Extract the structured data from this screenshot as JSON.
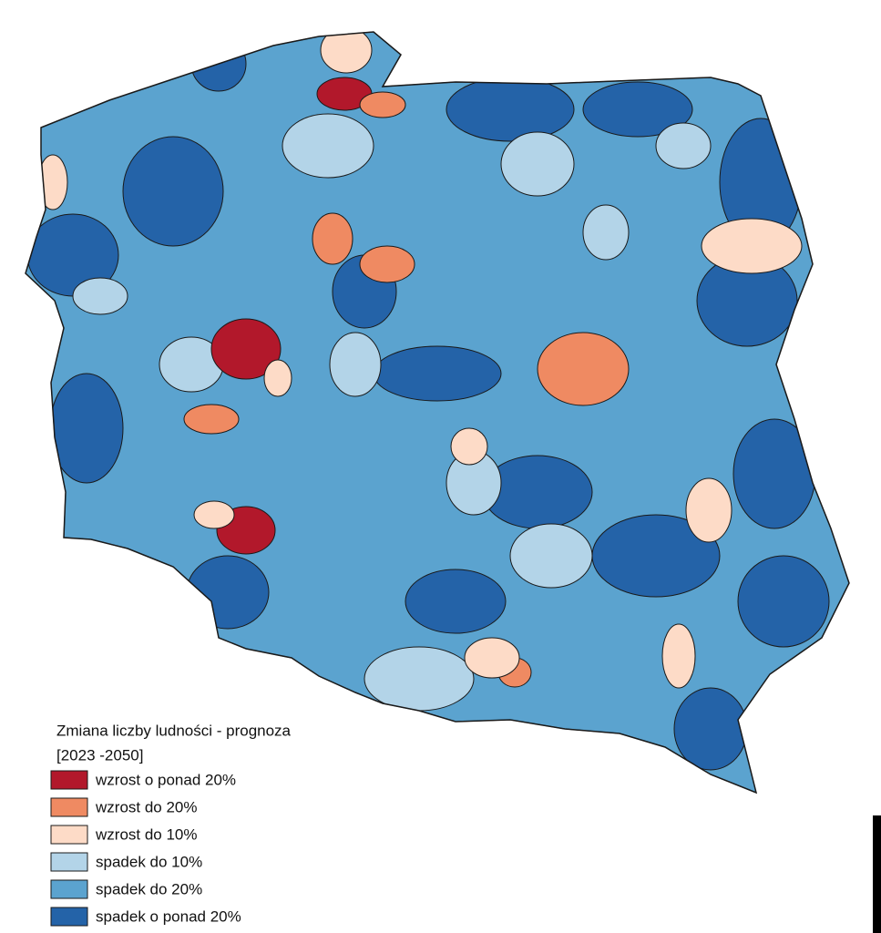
{
  "legend": {
    "title": "Zmiana liczby ludności - prognoza",
    "subtitle": "[2023 -2050]",
    "items": [
      {
        "label": "wzrost o ponad 20%",
        "color": "#b2182b"
      },
      {
        "label": "wzrost do 20%",
        "color": "#ef8a62"
      },
      {
        "label": "wzrost do 10%",
        "color": "#fddbc7"
      },
      {
        "label": "spadek do 10%",
        "color": "#b3d4e8"
      },
      {
        "label": "spadek do 20%",
        "color": "#5ba3cf"
      },
      {
        "label": "spadek o ponad 20%",
        "color": "#2463a8"
      }
    ]
  }
}
